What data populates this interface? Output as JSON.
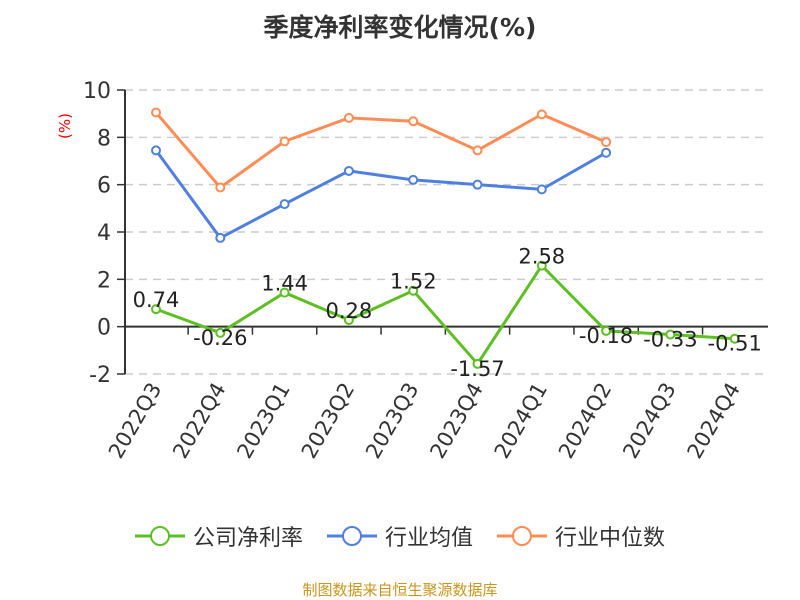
{
  "chart_data": {
    "type": "line",
    "title": "季度净利率变化情况(%)",
    "ylabel": "(%)",
    "xlabel": "",
    "ylim": [
      -2,
      10
    ],
    "yticks": [
      -2,
      0,
      2,
      4,
      6,
      8,
      10
    ],
    "grid": true,
    "legend_position": "bottom",
    "categories": [
      "2022Q3",
      "2022Q4",
      "2023Q1",
      "2023Q2",
      "2023Q3",
      "2023Q4",
      "2024Q1",
      "2024Q2",
      "2024Q3",
      "2024Q4"
    ],
    "series": [
      {
        "name": "公司净利率",
        "color": "#5cbf22",
        "labels": true,
        "values": [
          0.74,
          -0.26,
          1.44,
          0.28,
          1.52,
          -1.57,
          2.58,
          -0.18,
          -0.33,
          -0.51
        ]
      },
      {
        "name": "行业均值",
        "color": "#4f7fe0",
        "labels": false,
        "values": [
          7.45,
          3.75,
          5.18,
          6.58,
          6.2,
          6.0,
          5.8,
          7.35,
          null,
          null
        ]
      },
      {
        "name": "行业中位数",
        "color": "#ff8c55",
        "labels": false,
        "values": [
          9.05,
          5.88,
          7.83,
          8.82,
          8.68,
          7.45,
          8.97,
          7.8,
          null,
          null
        ]
      }
    ]
  },
  "source": "制图数据来自恒生聚源数据库"
}
